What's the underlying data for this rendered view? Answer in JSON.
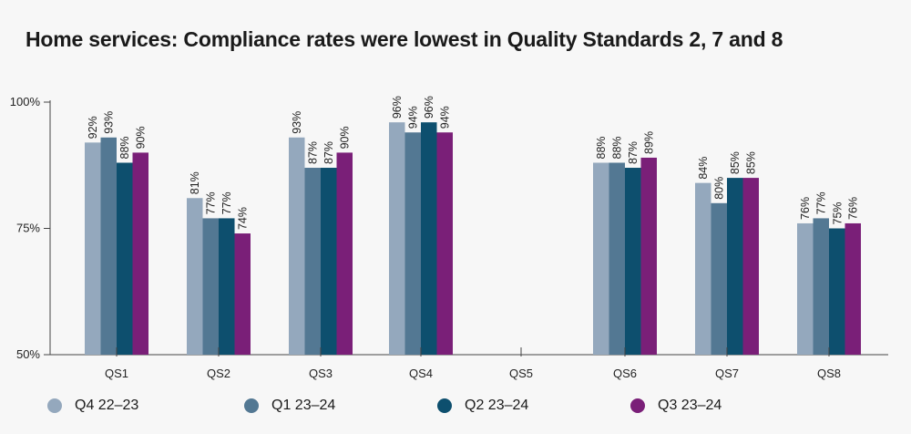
{
  "chart_data": {
    "type": "bar",
    "title": "Home services: Compliance rates were lowest in Quality Standards 2, 7 and 8",
    "xlabel": "",
    "ylabel": "",
    "ylim": [
      50,
      100
    ],
    "yticks": [
      {
        "value": 100,
        "label": "100%"
      },
      {
        "value": 75,
        "label": "75%"
      },
      {
        "value": 50,
        "label": "50%"
      }
    ],
    "grid": false,
    "legend_position": "bottom",
    "categories": [
      "QS1",
      "QS2",
      "QS3",
      "QS4",
      "QS5",
      "QS6",
      "QS7",
      "QS8"
    ],
    "series": [
      {
        "name": "Q4 22–23",
        "color": "#94a8bd",
        "values": [
          92,
          81,
          93,
          96,
          null,
          88,
          84,
          76
        ],
        "labels": [
          "92%",
          "81%",
          "93%",
          "96%",
          null,
          "88%",
          "84%",
          "76%"
        ]
      },
      {
        "name": "Q1 23–24",
        "color": "#537893",
        "values": [
          93,
          77,
          87,
          94,
          null,
          88,
          80,
          77
        ],
        "labels": [
          "93%",
          "77%",
          "87%",
          "94%",
          null,
          "88%",
          "80%",
          "77%"
        ]
      },
      {
        "name": "Q2 23–24",
        "color": "#0d4f6e",
        "values": [
          88,
          77,
          87,
          96,
          null,
          87,
          85,
          75
        ],
        "labels": [
          "88%",
          "77%",
          "87%",
          "96%",
          null,
          "87%",
          "85%",
          "75%"
        ]
      },
      {
        "name": "Q3 23–24",
        "color": "#7a1f78",
        "values": [
          90,
          74,
          90,
          94,
          null,
          89,
          85,
          76
        ],
        "labels": [
          "90%",
          "74%",
          "90%",
          "94%",
          null,
          "89%",
          "85%",
          "76%"
        ]
      }
    ]
  }
}
